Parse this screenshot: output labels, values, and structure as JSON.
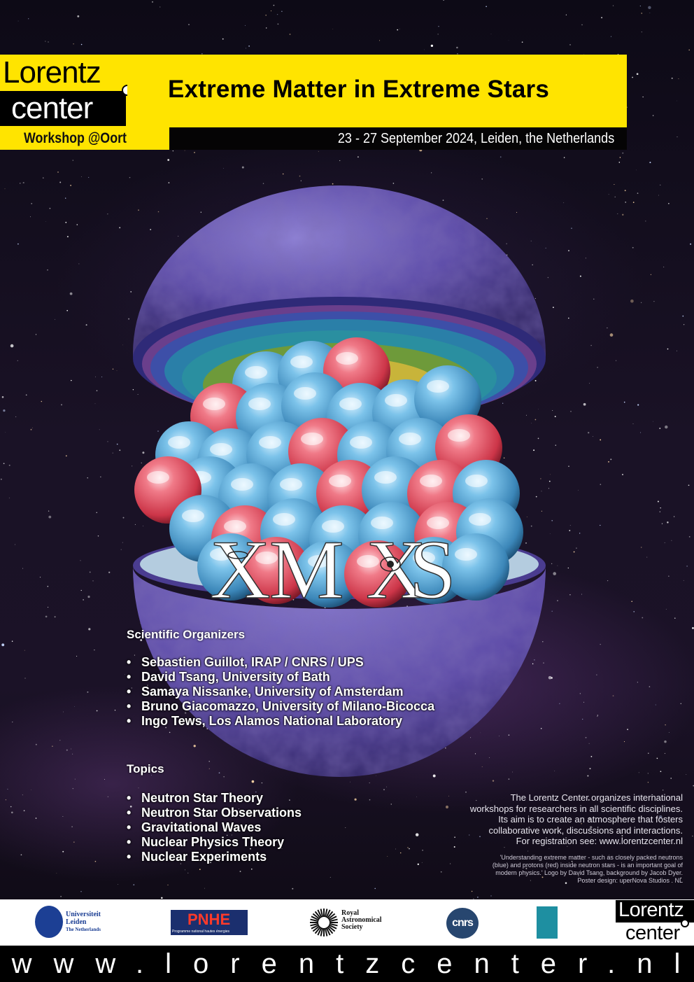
{
  "header": {
    "logo_line1": "Lorentz",
    "logo_line2": "center",
    "workshop_label": "Workshop @Oort",
    "title": "Extreme Matter in Extreme Stars",
    "date_location": "23 - 27 September 2024, Leiden, the Netherlands"
  },
  "workshop_logo": {
    "text": "XMXS"
  },
  "colors": {
    "yellow": "#ffe400",
    "neutron_blue": "#5aa8d8",
    "proton_red": "#e8566a",
    "sphere_purple": "#5b4aa8"
  },
  "organizers": {
    "heading": "Scientific Organizers",
    "items": [
      "Sebastien Guillot, IRAP / CNRS / UPS",
      "David Tsang, University of Bath",
      "Samaya Nissanke, University of Amsterdam",
      "Bruno Giacomazzo, University of Milano-Bicocca",
      "Ingo Tews, Los Alamos National Laboratory"
    ]
  },
  "topics": {
    "heading": "Topics",
    "items": [
      "Neutron Star Theory",
      "Neutron Star Observations",
      "Gravitational Waves",
      "Nuclear Physics Theory",
      "Nuclear Experiments"
    ]
  },
  "about": {
    "line1": "The Lorentz Center organizes international",
    "line2": "workshops for researchers in all scientific disciplines.",
    "line3": "Its aim is to create an atmosphere that fosters",
    "line4": "collaborative work, discussions and interactions.",
    "line5": "For registration see: www.lorentzcenter.nl"
  },
  "credits": {
    "line1": "'Understanding extreme matter - such as closely packed neutrons",
    "line2": "(blue) and protons (red) inside neutron stars - is an important goal of",
    "line3": "modern physics.' Logo by David Tsang, background by Jacob Dyer.",
    "line4": "Poster design: uperNova Studios . NL"
  },
  "sponsors": {
    "leiden_line1": "Universiteit",
    "leiden_line2": "Leiden",
    "leiden_line3": "The Netherlands",
    "pnhe": "PNHE",
    "pnhe_sub": "Programme national hautes énergies",
    "ras_line1": "Royal",
    "ras_line2": "Astronomical",
    "ras_line3": "Society",
    "cnrs": "cnrs",
    "lorentz_line1": "Lorentz",
    "lorentz_line2": "center"
  },
  "footer": {
    "url": "www.lorentzcenter.nl"
  }
}
